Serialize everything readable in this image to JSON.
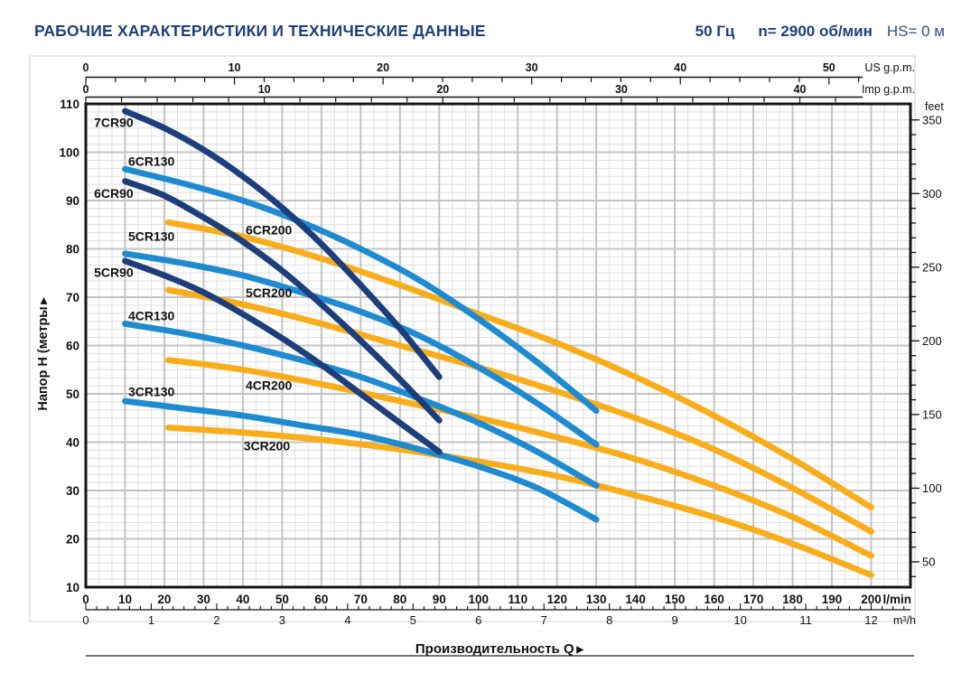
{
  "header": {
    "title": "РАБОЧИЕ ХАРАКТЕРИСТИКИ И ТЕХНИЧЕСКИЕ ДАННЫЕ",
    "frequency": "50 Гц",
    "speed": "n= 2900 об/мин",
    "suction": "HS= 0 м"
  },
  "colors": {
    "header_text": "#1e3f7d",
    "navy": "#1c3e7c",
    "blue": "#1e8bd0",
    "orange": "#f9ad1b",
    "grid_minor": "#dedede",
    "grid_major": "#c3c3c3",
    "axis": "#111111",
    "outer_border": "#cfcfcf"
  },
  "chart_data": {
    "type": "line",
    "title": "РАБОЧИЕ ХАРАКТЕРИСТИКИ И ТЕХНИЧЕСКИЕ ДАННЫЕ",
    "xlabel": "Производительность Q",
    "xlabel_arrow": "▶",
    "ylabel": "Напор H (метры",
    "ylabel_arrow": "▶",
    "x_range_lmin": [
      0,
      210
    ],
    "y_range_m": [
      10,
      110
    ],
    "grid": {
      "x_major_step": 10,
      "x_minor_per_major": 3,
      "y_major_step": 10,
      "y_minor_per_major": 6
    },
    "axes": {
      "left": {
        "labels": [
          110,
          100,
          90,
          80,
          70,
          60,
          50,
          40,
          30,
          20,
          10
        ]
      },
      "right": {
        "unit": "feet",
        "labels": [
          350,
          300,
          250,
          200,
          150,
          100,
          50
        ],
        "minor_step": 10,
        "major_step": 50,
        "meters_per_foot": 0.3048,
        "tick_min": 40,
        "tick_max": 350
      },
      "bottom_lmin": {
        "unit": "l/min",
        "labels": [
          0,
          10,
          20,
          30,
          40,
          50,
          60,
          70,
          80,
          90,
          100,
          110,
          120,
          130,
          140,
          150,
          160,
          170,
          180,
          190,
          200
        ]
      },
      "bottom_m3h": {
        "unit": "m³/h",
        "labels": [
          0,
          1,
          2,
          3,
          4,
          5,
          6,
          7,
          8,
          9,
          10,
          11,
          12
        ],
        "lmin_per_unit": 16.6667,
        "minor_divisions": 6,
        "tick_extent": 12.5
      },
      "top_us": {
        "unit": "US g.p.m.",
        "labels": [
          0,
          10,
          20,
          30,
          40,
          50
        ],
        "lmin_per_unit": 3.785,
        "minor_step": 2,
        "tick_extent": 52
      },
      "top_imp": {
        "unit": "Imp g.p.m.",
        "labels": [
          0,
          10,
          20,
          30,
          40
        ],
        "lmin_per_unit": 4.546,
        "minor_step": 2,
        "tick_extent": 42
      }
    },
    "series": [
      {
        "name": "6CR200",
        "family": "CR200",
        "color": "#f9ad1b",
        "label_pos": [
          40.7,
          83.0
        ],
        "points": [
          [
            21,
            85.5
          ],
          [
            40,
            82.5
          ],
          [
            60,
            78
          ],
          [
            80,
            72.5
          ],
          [
            100,
            66.5
          ],
          [
            120,
            60.5
          ],
          [
            140,
            53.5
          ],
          [
            160,
            45.5
          ],
          [
            180,
            36.5
          ],
          [
            200,
            26.5
          ]
        ]
      },
      {
        "name": "5CR200",
        "family": "CR200",
        "color": "#f9ad1b",
        "label_pos": [
          40.7,
          70.0
        ],
        "points": [
          [
            21,
            71.5
          ],
          [
            40,
            68.5
          ],
          [
            60,
            64.5
          ],
          [
            80,
            60
          ],
          [
            100,
            55.5
          ],
          [
            120,
            50.5
          ],
          [
            140,
            45
          ],
          [
            160,
            38.5
          ],
          [
            180,
            30.5
          ],
          [
            200,
            21.5
          ]
        ]
      },
      {
        "name": "4CR200",
        "family": "CR200",
        "color": "#f9ad1b",
        "label_pos": [
          40.7,
          50.8
        ],
        "points": [
          [
            21,
            57
          ],
          [
            40,
            55
          ],
          [
            60,
            52
          ],
          [
            80,
            48.5
          ],
          [
            100,
            45
          ],
          [
            120,
            41
          ],
          [
            140,
            36.5
          ],
          [
            160,
            31
          ],
          [
            180,
            24.5
          ],
          [
            200,
            16.5
          ]
        ]
      },
      {
        "name": "3CR200",
        "family": "CR200",
        "color": "#f9ad1b",
        "label_pos": [
          40.2,
          38.3
        ],
        "points": [
          [
            21,
            43
          ],
          [
            40,
            42
          ],
          [
            60,
            40.5
          ],
          [
            80,
            38.5
          ],
          [
            100,
            36
          ],
          [
            120,
            33
          ],
          [
            140,
            29
          ],
          [
            160,
            24.5
          ],
          [
            180,
            19
          ],
          [
            200,
            12.5
          ]
        ]
      },
      {
        "name": "6CR130",
        "family": "CR130",
        "color": "#1e8bd0",
        "label_pos": [
          10.8,
          97.2
        ],
        "points": [
          [
            10,
            96.5
          ],
          [
            25,
            93.5
          ],
          [
            40,
            90
          ],
          [
            55,
            85.5
          ],
          [
            70,
            80
          ],
          [
            85,
            73.5
          ],
          [
            100,
            65.5
          ],
          [
            115,
            56.5
          ],
          [
            130,
            46.5
          ]
        ]
      },
      {
        "name": "5CR130",
        "family": "CR130",
        "color": "#1e8bd0",
        "label_pos": [
          10.8,
          81.7
        ],
        "points": [
          [
            10,
            79
          ],
          [
            25,
            77
          ],
          [
            40,
            74.5
          ],
          [
            55,
            71
          ],
          [
            70,
            67
          ],
          [
            85,
            62
          ],
          [
            100,
            55.5
          ],
          [
            115,
            48
          ],
          [
            130,
            39.5
          ]
        ]
      },
      {
        "name": "4CR130",
        "family": "CR130",
        "color": "#1e8bd0",
        "label_pos": [
          10.8,
          65.2
        ],
        "points": [
          [
            10,
            64.5
          ],
          [
            25,
            62.5
          ],
          [
            40,
            60
          ],
          [
            55,
            57
          ],
          [
            70,
            53.5
          ],
          [
            85,
            49
          ],
          [
            100,
            44
          ],
          [
            115,
            38
          ],
          [
            130,
            31
          ]
        ]
      },
      {
        "name": "3CR130",
        "family": "CR130",
        "color": "#1e8bd0",
        "label_pos": [
          10.8,
          49.5
        ],
        "points": [
          [
            10,
            48.5
          ],
          [
            25,
            47
          ],
          [
            40,
            45.5
          ],
          [
            55,
            43.5
          ],
          [
            70,
            41.5
          ],
          [
            85,
            38.5
          ],
          [
            100,
            35
          ],
          [
            115,
            30.5
          ],
          [
            130,
            24
          ]
        ]
      },
      {
        "name": "7CR90",
        "family": "CR90",
        "color": "#1c3e7c",
        "label_pos": [
          2.1,
          105.2
        ],
        "points": [
          [
            10,
            108.5
          ],
          [
            20,
            105
          ],
          [
            30,
            100.5
          ],
          [
            40,
            95
          ],
          [
            50,
            88.5
          ],
          [
            60,
            81
          ],
          [
            70,
            72.5
          ],
          [
            80,
            63.5
          ],
          [
            90,
            53.5
          ]
        ]
      },
      {
        "name": "6CR90",
        "family": "CR90",
        "color": "#1c3e7c",
        "label_pos": [
          2.1,
          90.6
        ],
        "points": [
          [
            10,
            94
          ],
          [
            20,
            91
          ],
          [
            30,
            86.5
          ],
          [
            40,
            81.5
          ],
          [
            50,
            75.5
          ],
          [
            60,
            68.5
          ],
          [
            70,
            61
          ],
          [
            80,
            53
          ],
          [
            90,
            44.5
          ]
        ]
      },
      {
        "name": "5CR90",
        "family": "CR90",
        "color": "#1c3e7c",
        "label_pos": [
          2.1,
          74.2
        ],
        "points": [
          [
            10,
            77.5
          ],
          [
            20,
            74.5
          ],
          [
            30,
            71
          ],
          [
            40,
            66.5
          ],
          [
            50,
            61.5
          ],
          [
            60,
            56
          ],
          [
            70,
            50
          ],
          [
            80,
            44
          ],
          [
            90,
            38
          ]
        ]
      }
    ]
  }
}
